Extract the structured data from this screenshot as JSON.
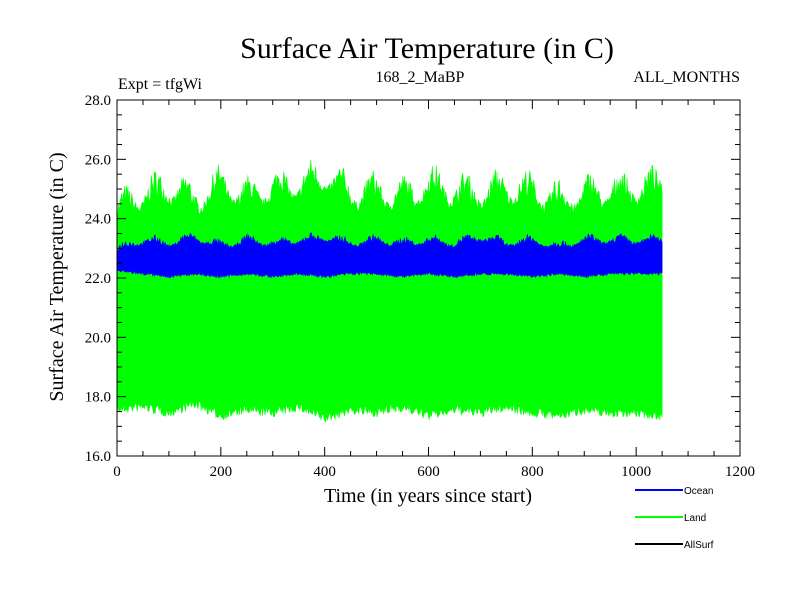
{
  "chart_data": {
    "type": "line",
    "title": "Surface Air Temperature (in C)",
    "subtitle_left": "Expt = tfgWi",
    "subtitle_center": "168_2_MaBP",
    "subtitle_right": "ALL_MONTHS",
    "xlabel": "Time (in years since start)",
    "ylabel": "Surface Air Temperature (in C)",
    "xlim": [
      0,
      1200
    ],
    "ylim": [
      16.0,
      28.0
    ],
    "xticks": [
      0,
      200,
      400,
      600,
      800,
      1000,
      1200
    ],
    "yticks": [
      16.0,
      18.0,
      20.0,
      22.0,
      24.0,
      26.0,
      28.0
    ],
    "xtick_labels": [
      "0",
      "200",
      "400",
      "600",
      "800",
      "1000",
      "1200"
    ],
    "ytick_labels": [
      "16.0",
      "18.0",
      "20.0",
      "22.0",
      "24.0",
      "26.0",
      "28.0"
    ],
    "x_range_of_data": [
      0,
      1050
    ],
    "series": [
      {
        "name": "Land",
        "color": "#00ff00",
        "x": [
          0,
          50,
          100,
          150,
          200,
          250,
          300,
          350,
          400,
          450,
          500,
          550,
          600,
          650,
          700,
          750,
          800,
          850,
          900,
          950,
          1000,
          1050
        ],
        "upper": [
          25.0,
          25.6,
          25.8,
          25.4,
          25.9,
          25.5,
          25.8,
          25.9,
          26.2,
          25.6,
          25.7,
          25.5,
          25.9,
          25.7,
          25.6,
          25.8,
          25.7,
          25.4,
          25.6,
          25.7,
          25.8,
          25.9
        ],
        "lower": [
          17.4,
          17.5,
          17.3,
          17.6,
          17.2,
          17.4,
          17.3,
          17.5,
          17.1,
          17.4,
          17.3,
          17.5,
          17.2,
          17.4,
          17.3,
          17.5,
          17.3,
          17.2,
          17.4,
          17.3,
          17.3,
          17.2
        ]
      },
      {
        "name": "Ocean",
        "color": "#0000ff",
        "x": [
          0,
          50,
          100,
          150,
          200,
          250,
          300,
          350,
          400,
          450,
          500,
          550,
          600,
          650,
          700,
          750,
          800,
          850,
          900,
          950,
          1000,
          1050
        ],
        "upper": [
          23.2,
          23.5,
          23.4,
          23.6,
          23.3,
          23.5,
          23.4,
          23.5,
          23.6,
          23.4,
          23.5,
          23.4,
          23.5,
          23.4,
          23.6,
          23.4,
          23.5,
          23.3,
          23.5,
          23.5,
          23.5,
          23.5
        ],
        "lower": [
          22.2,
          22.1,
          22.0,
          22.1,
          22.0,
          22.1,
          22.0,
          22.1,
          22.0,
          22.1,
          22.1,
          22.0,
          22.1,
          22.0,
          22.1,
          22.1,
          22.0,
          22.1,
          22.0,
          22.1,
          22.1,
          22.1
        ]
      },
      {
        "name": "AllSurf",
        "color": "#000000",
        "x": [],
        "upper": [],
        "lower": []
      }
    ],
    "legend": [
      "Ocean",
      "Land",
      "AllSurf"
    ],
    "legend_position": "bottom-right"
  }
}
